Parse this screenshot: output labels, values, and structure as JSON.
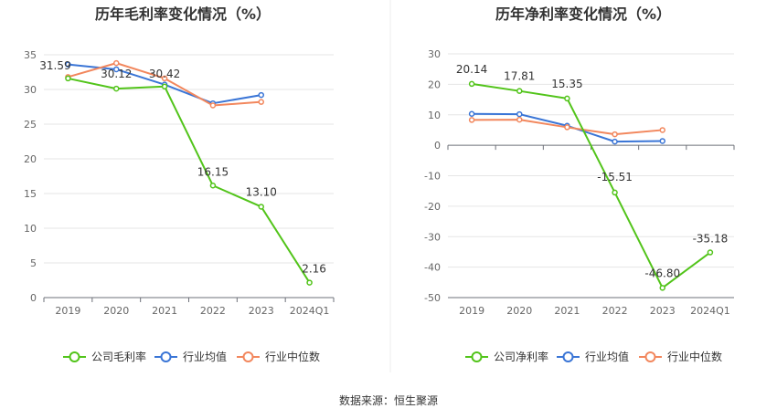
{
  "source": "数据来源：恒生聚源",
  "chart_data": [
    {
      "type": "line",
      "title": "历年毛利率变化情况（%）",
      "categories": [
        "2019",
        "2020",
        "2021",
        "2022",
        "2023",
        "2024Q1"
      ],
      "ylim": [
        0,
        35
      ],
      "yticks": [
        "0",
        "5",
        "10",
        "15",
        "20",
        "25",
        "30",
        "35"
      ],
      "grid": true,
      "legend_position": "bottom",
      "series": [
        {
          "name": "公司毛利率",
          "color": "#52c41a",
          "values": [
            31.59,
            30.12,
            30.42,
            16.15,
            13.1,
            2.16
          ],
          "labels": [
            "31.59",
            "30.12",
            "30.42",
            "16.15",
            "13.10",
            "2.16"
          ]
        },
        {
          "name": "行业均值",
          "color": "#3a75d6",
          "values": [
            33.6,
            32.9,
            30.7,
            28.0,
            29.2,
            null
          ]
        },
        {
          "name": "行业中位数",
          "color": "#f2875d",
          "values": [
            31.8,
            33.8,
            31.6,
            27.7,
            28.2,
            null
          ]
        }
      ]
    },
    {
      "type": "line",
      "title": "历年净利率变化情况（%）",
      "categories": [
        "2019",
        "2020",
        "2021",
        "2022",
        "2023",
        "2024Q1"
      ],
      "ylim": [
        -50,
        30
      ],
      "yticks": [
        "-50",
        "-40",
        "-30",
        "-20",
        "-10",
        "0",
        "10",
        "20",
        "30"
      ],
      "grid": true,
      "legend_position": "bottom",
      "series": [
        {
          "name": "公司净利率",
          "color": "#52c41a",
          "values": [
            20.14,
            17.81,
            15.35,
            -15.51,
            -46.8,
            -35.18
          ],
          "labels": [
            "20.14",
            "17.81",
            "15.35",
            "-15.51",
            "-46.80",
            "-35.18"
          ]
        },
        {
          "name": "行业均值",
          "color": "#3a75d6",
          "values": [
            10.3,
            10.2,
            6.4,
            1.2,
            1.4,
            null
          ]
        },
        {
          "name": "行业中位数",
          "color": "#f2875d",
          "values": [
            8.3,
            8.4,
            5.9,
            3.6,
            5.0,
            null
          ]
        }
      ]
    }
  ]
}
